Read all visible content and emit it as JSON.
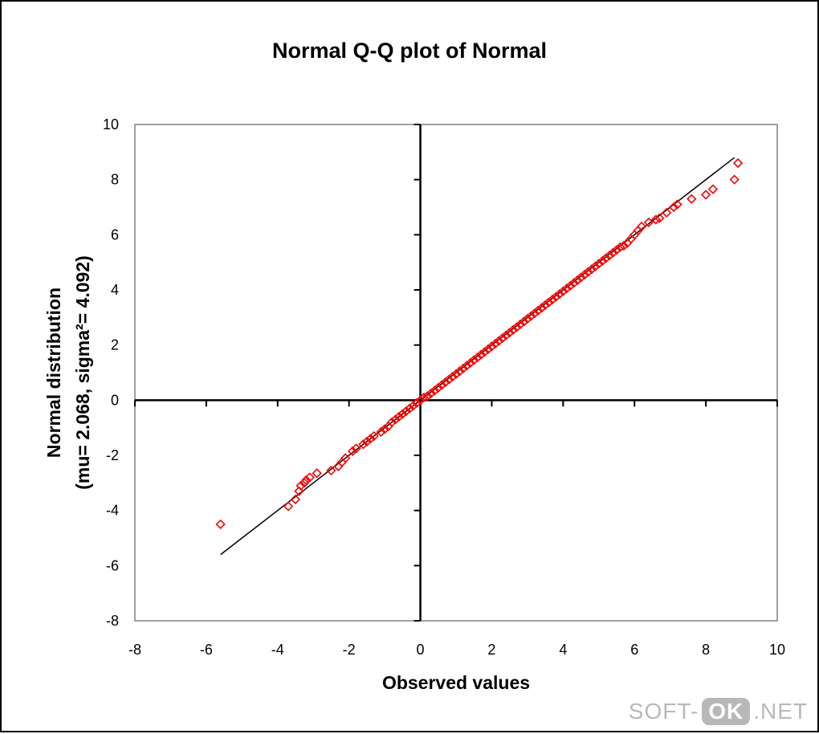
{
  "chart_data": {
    "type": "scatter",
    "title": "Normal Q-Q plot of Normal",
    "xlabel": "Observed values",
    "ylabel_line1": "Normal distribution",
    "ylabel_line2": "(mu= 2.068, sigma²= 4.092)",
    "xlim": [
      -8,
      10
    ],
    "ylim": [
      -8,
      10
    ],
    "xticks": [
      -8,
      -6,
      -4,
      -2,
      0,
      2,
      4,
      6,
      8,
      10
    ],
    "yticks": [
      -8,
      -6,
      -4,
      -2,
      0,
      2,
      4,
      6,
      8,
      10
    ],
    "grid": false,
    "legend": "none",
    "marker": "diamond",
    "marker_color": "#ff0000",
    "line_color": "#000000",
    "reference_line": {
      "x": [
        -5.6,
        8.8
      ],
      "y": [
        -5.6,
        8.8
      ]
    },
    "series": [
      {
        "values": [
          [
            -5.6,
            -4.5
          ],
          [
            -3.7,
            -3.85
          ],
          [
            -3.5,
            -3.6
          ],
          [
            -3.4,
            -3.3
          ],
          [
            -3.35,
            -3.1
          ],
          [
            -3.25,
            -3.0
          ],
          [
            -3.2,
            -2.9
          ],
          [
            -3.1,
            -2.8
          ],
          [
            -2.9,
            -2.65
          ],
          [
            -2.5,
            -2.55
          ],
          [
            -2.3,
            -2.4
          ],
          [
            -2.2,
            -2.25
          ],
          [
            -2.1,
            -2.1
          ],
          [
            -1.9,
            -1.85
          ],
          [
            -1.8,
            -1.75
          ],
          [
            -1.6,
            -1.6
          ],
          [
            -1.5,
            -1.5
          ],
          [
            -1.4,
            -1.4
          ],
          [
            -1.3,
            -1.3
          ],
          [
            -1.1,
            -1.15
          ],
          [
            -1.0,
            -1.05
          ],
          [
            -0.9,
            -0.95
          ],
          [
            -0.8,
            -0.8
          ],
          [
            -0.7,
            -0.7
          ],
          [
            -0.6,
            -0.6
          ],
          [
            -0.5,
            -0.5
          ],
          [
            -0.4,
            -0.4
          ],
          [
            -0.3,
            -0.3
          ],
          [
            -0.2,
            -0.2
          ],
          [
            -0.1,
            -0.1
          ],
          [
            0.0,
            0.0
          ],
          [
            0.1,
            0.1
          ],
          [
            0.2,
            0.15
          ],
          [
            0.3,
            0.25
          ],
          [
            0.4,
            0.35
          ],
          [
            0.5,
            0.45
          ],
          [
            0.6,
            0.55
          ],
          [
            0.7,
            0.65
          ],
          [
            0.8,
            0.75
          ],
          [
            0.9,
            0.85
          ],
          [
            1.0,
            0.95
          ],
          [
            1.1,
            1.05
          ],
          [
            1.2,
            1.15
          ],
          [
            1.3,
            1.25
          ],
          [
            1.4,
            1.35
          ],
          [
            1.5,
            1.45
          ],
          [
            1.6,
            1.55
          ],
          [
            1.7,
            1.65
          ],
          [
            1.8,
            1.75
          ],
          [
            1.9,
            1.85
          ],
          [
            2.0,
            1.95
          ],
          [
            2.1,
            2.05
          ],
          [
            2.2,
            2.15
          ],
          [
            2.3,
            2.25
          ],
          [
            2.4,
            2.35
          ],
          [
            2.5,
            2.45
          ],
          [
            2.6,
            2.55
          ],
          [
            2.7,
            2.65
          ],
          [
            2.8,
            2.75
          ],
          [
            2.9,
            2.85
          ],
          [
            3.0,
            2.95
          ],
          [
            3.1,
            3.05
          ],
          [
            3.2,
            3.15
          ],
          [
            3.3,
            3.25
          ],
          [
            3.4,
            3.35
          ],
          [
            3.5,
            3.45
          ],
          [
            3.6,
            3.55
          ],
          [
            3.7,
            3.65
          ],
          [
            3.8,
            3.75
          ],
          [
            3.9,
            3.85
          ],
          [
            4.0,
            3.95
          ],
          [
            4.1,
            4.05
          ],
          [
            4.2,
            4.15
          ],
          [
            4.3,
            4.25
          ],
          [
            4.4,
            4.35
          ],
          [
            4.5,
            4.45
          ],
          [
            4.6,
            4.55
          ],
          [
            4.7,
            4.65
          ],
          [
            4.8,
            4.75
          ],
          [
            4.9,
            4.85
          ],
          [
            5.0,
            4.95
          ],
          [
            5.1,
            5.05
          ],
          [
            5.2,
            5.15
          ],
          [
            5.3,
            5.25
          ],
          [
            5.4,
            5.35
          ],
          [
            5.5,
            5.45
          ],
          [
            5.6,
            5.55
          ],
          [
            5.7,
            5.6
          ],
          [
            5.8,
            5.7
          ],
          [
            5.9,
            5.85
          ],
          [
            6.0,
            6.0
          ],
          [
            6.1,
            6.15
          ],
          [
            6.2,
            6.3
          ],
          [
            6.4,
            6.45
          ],
          [
            6.6,
            6.55
          ],
          [
            6.7,
            6.6
          ],
          [
            6.9,
            6.8
          ],
          [
            7.1,
            7.0
          ],
          [
            7.2,
            7.1
          ],
          [
            7.6,
            7.3
          ],
          [
            8.0,
            7.45
          ],
          [
            8.2,
            7.65
          ],
          [
            8.8,
            8.0
          ],
          [
            8.9,
            8.6
          ]
        ]
      }
    ]
  },
  "watermark": {
    "left": "SOFT-",
    "badge": "OK",
    "right": ".NET"
  }
}
